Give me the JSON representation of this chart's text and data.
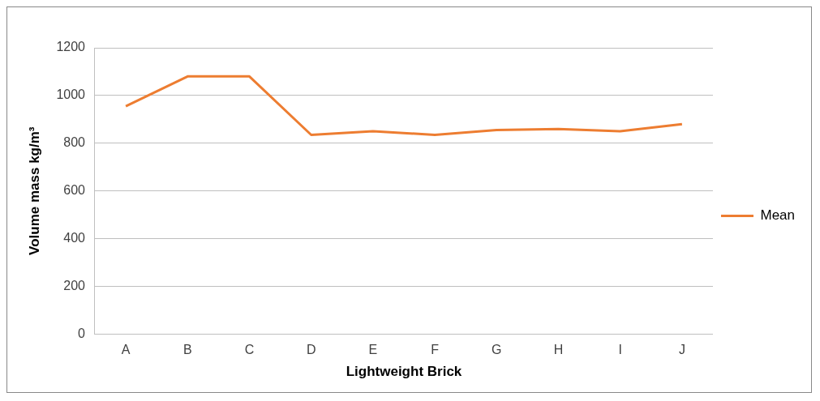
{
  "chart_data": {
    "type": "line",
    "xlabel": "Lightweight Brick",
    "ylabel": "Volume mass kg/m³",
    "categories": [
      "A",
      "B",
      "C",
      "D",
      "E",
      "F",
      "G",
      "H",
      "I",
      "J"
    ],
    "series": [
      {
        "name": "Mean",
        "color": "#ed7d31",
        "values": [
          955,
          1080,
          1080,
          835,
          850,
          835,
          855,
          860,
          850,
          880
        ]
      }
    ],
    "ylim": [
      0,
      1200
    ],
    "yticks": [
      0,
      200,
      400,
      600,
      800,
      1000,
      1200
    ],
    "grid": "y",
    "legend": "right",
    "marker": "none"
  }
}
